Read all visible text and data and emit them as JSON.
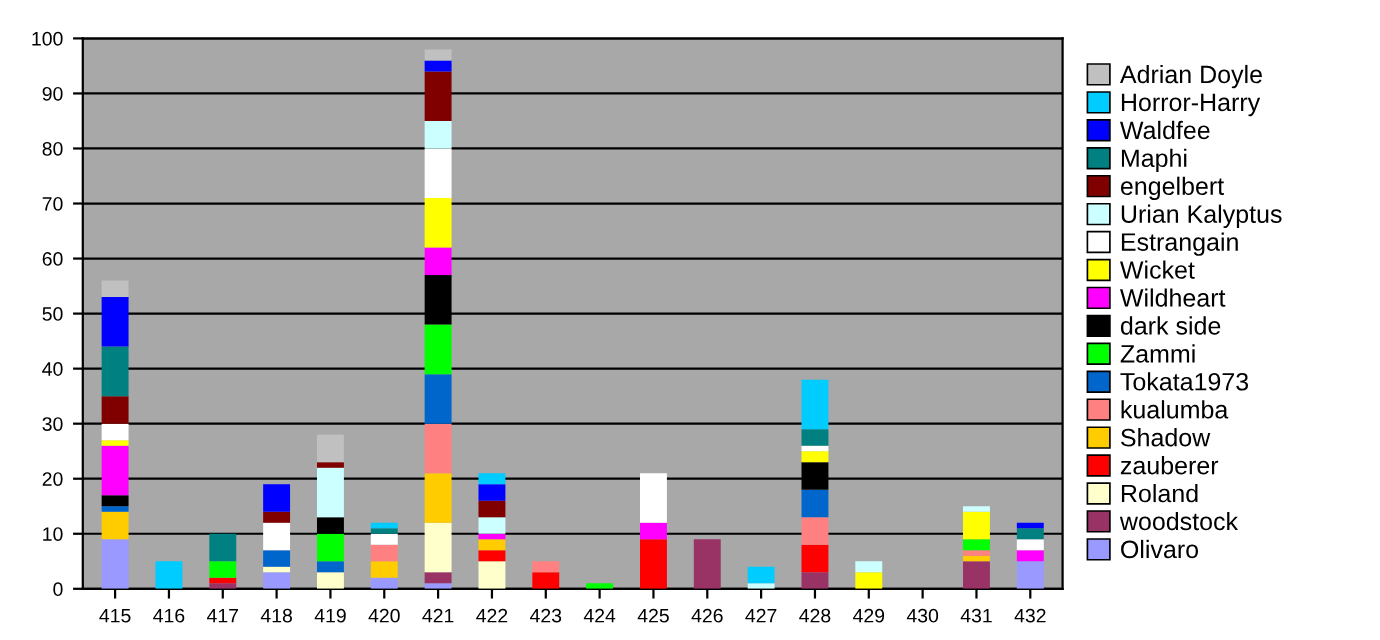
{
  "chart_data": {
    "type": "bar",
    "stacked": true,
    "categories": [
      "415",
      "416",
      "417",
      "418",
      "419",
      "420",
      "421",
      "422",
      "423",
      "424",
      "425",
      "426",
      "427",
      "428",
      "429",
      "430",
      "431",
      "432"
    ],
    "ylim": [
      0,
      100
    ],
    "yticks": [
      0,
      10,
      20,
      30,
      40,
      50,
      60,
      70,
      80,
      90,
      100
    ],
    "grid": "y",
    "legend": "right",
    "series": [
      {
        "name": "Olivaro",
        "color": "#9999ff",
        "values": [
          9,
          0,
          0,
          3,
          0,
          2,
          1,
          0,
          0,
          0,
          0,
          0,
          0,
          0,
          0,
          0,
          0,
          5
        ]
      },
      {
        "name": "woodstock",
        "color": "#993366",
        "values": [
          0,
          0,
          1,
          0,
          0,
          0,
          2,
          0,
          0,
          0,
          0,
          9,
          0,
          3,
          0,
          0,
          5,
          0
        ]
      },
      {
        "name": "Roland",
        "color": "#ffffcc",
        "values": [
          0,
          0,
          0,
          1,
          3,
          0,
          9,
          5,
          0,
          0,
          0,
          0,
          0,
          0,
          0,
          0,
          0,
          0
        ]
      },
      {
        "name": "zauberer",
        "color": "#ff0000",
        "values": [
          0,
          0,
          1,
          0,
          0,
          0,
          0,
          2,
          3,
          0,
          9,
          0,
          0,
          5,
          0,
          0,
          0,
          0
        ]
      },
      {
        "name": "Shadow",
        "color": "#ffcc00",
        "values": [
          5,
          0,
          0,
          0,
          0,
          3,
          9,
          2,
          0,
          0,
          0,
          0,
          0,
          0,
          0,
          0,
          1,
          0
        ]
      },
      {
        "name": "kualumba",
        "color": "#ff8080",
        "values": [
          0,
          0,
          0,
          0,
          0,
          3,
          9,
          0,
          2,
          0,
          0,
          0,
          0,
          5,
          0,
          0,
          1,
          0
        ]
      },
      {
        "name": "Tokata1973",
        "color": "#0066cc",
        "values": [
          1,
          0,
          0,
          3,
          2,
          0,
          9,
          0,
          0,
          0,
          0,
          0,
          0,
          5,
          0,
          0,
          0,
          0
        ]
      },
      {
        "name": "Zammi",
        "color": "#00ff00",
        "values": [
          0,
          0,
          3,
          0,
          5,
          0,
          9,
          0,
          0,
          1,
          0,
          0,
          0,
          0,
          0,
          0,
          2,
          0
        ]
      },
      {
        "name": "dark side",
        "color": "#000000",
        "values": [
          2,
          0,
          0,
          0,
          3,
          0,
          9,
          0,
          0,
          0,
          0,
          0,
          0,
          5,
          0,
          0,
          0,
          0
        ]
      },
      {
        "name": "Wildheart",
        "color": "#ff00ff",
        "values": [
          9,
          0,
          0,
          0,
          0,
          0,
          5,
          1,
          0,
          0,
          3,
          0,
          0,
          0,
          0,
          0,
          0,
          2
        ]
      },
      {
        "name": "Wicket",
        "color": "#ffff00",
        "values": [
          1,
          0,
          0,
          0,
          0,
          0,
          9,
          0,
          0,
          0,
          0,
          0,
          0,
          2,
          3,
          0,
          5,
          0
        ]
      },
      {
        "name": "Estrangain",
        "color": "#ffffff",
        "values": [
          3,
          0,
          0,
          5,
          0,
          2,
          9,
          0,
          0,
          0,
          9,
          0,
          0,
          1,
          0,
          0,
          0,
          2
        ]
      },
      {
        "name": "Urian Kalyptus",
        "color": "#ccffff",
        "values": [
          0,
          0,
          0,
          0,
          9,
          0,
          5,
          3,
          0,
          0,
          0,
          0,
          1,
          0,
          2,
          0,
          1,
          0
        ]
      },
      {
        "name": "engelbert",
        "color": "#800000",
        "values": [
          5,
          0,
          0,
          2,
          1,
          0,
          9,
          3,
          0,
          0,
          0,
          0,
          0,
          0,
          0,
          0,
          0,
          0
        ]
      },
      {
        "name": "Maphi",
        "color": "#008080",
        "values": [
          9,
          0,
          5,
          0,
          0,
          1,
          0,
          0,
          0,
          0,
          0,
          0,
          0,
          3,
          0,
          0,
          0,
          2
        ]
      },
      {
        "name": "Waldfee",
        "color": "#0000ff",
        "values": [
          9,
          0,
          0,
          5,
          0,
          0,
          2,
          3,
          0,
          0,
          0,
          0,
          0,
          0,
          0,
          0,
          0,
          1
        ]
      },
      {
        "name": "Horror-Harry",
        "color": "#00ccff",
        "values": [
          0,
          5,
          0,
          0,
          0,
          1,
          0,
          2,
          0,
          0,
          0,
          0,
          3,
          9,
          0,
          0,
          0,
          0
        ]
      },
      {
        "name": "Adrian Doyle",
        "color": "#c0c0c0",
        "values": [
          3,
          0,
          0,
          0,
          5,
          0,
          2,
          0,
          0,
          0,
          0,
          0,
          0,
          0,
          0,
          0,
          0,
          0
        ]
      }
    ]
  }
}
